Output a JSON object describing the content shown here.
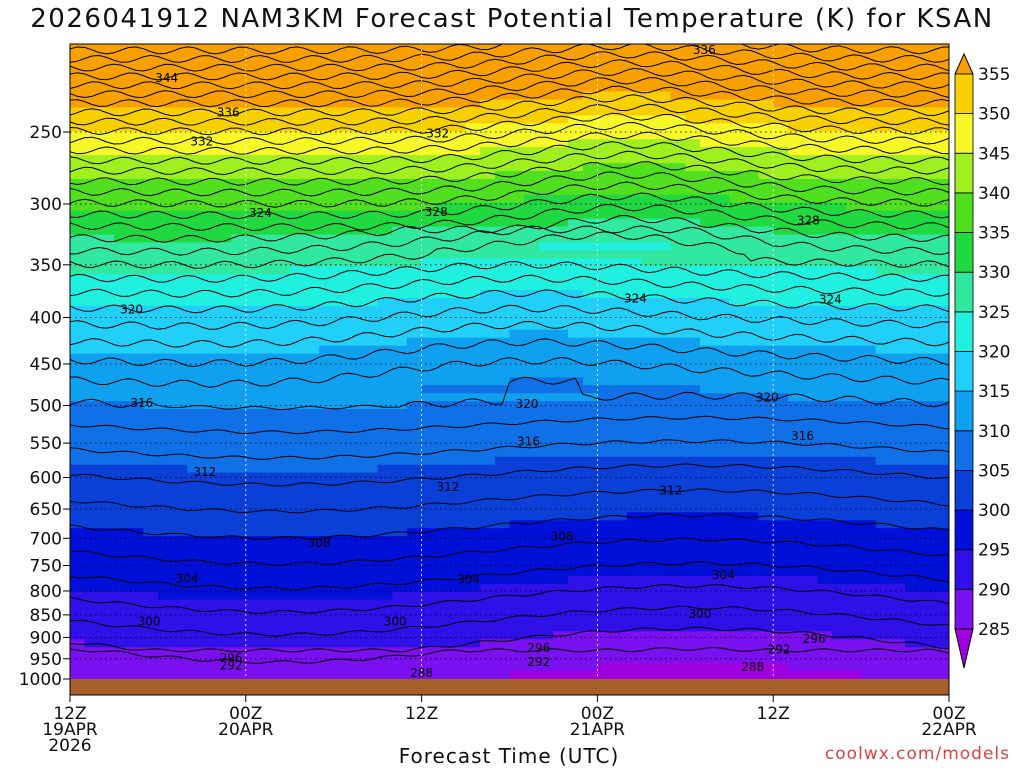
{
  "chart_data": {
    "type": "heatmap",
    "title": "2026041912 NAM3KM Forecast Potential Temperature (K) for KSAN",
    "xlabel": "Forecast Time (UTC)",
    "ylabel": "",
    "x_ticks": [
      {
        "t": 0,
        "lines": [
          "12Z",
          "19APR",
          "2026"
        ]
      },
      {
        "t": 12,
        "lines": [
          "00Z",
          "20APR"
        ]
      },
      {
        "t": 24,
        "lines": [
          "12Z"
        ]
      },
      {
        "t": 36,
        "lines": [
          "00Z",
          "21APR"
        ]
      },
      {
        "t": 48,
        "lines": [
          "12Z"
        ]
      },
      {
        "t": 60,
        "lines": [
          "00Z",
          "22APR"
        ]
      }
    ],
    "x_range_hours": [
      0,
      60
    ],
    "y_axis": "pressure (log scale, inverted)",
    "y_range": [
      1000,
      200
    ],
    "y_ticks": [
      250,
      300,
      350,
      400,
      450,
      500,
      550,
      600,
      650,
      700,
      750,
      800,
      850,
      900,
      950,
      1000
    ],
    "grid": true,
    "colorbar": {
      "levels": [
        285,
        290,
        295,
        300,
        305,
        310,
        315,
        320,
        325,
        330,
        335,
        340,
        345,
        350,
        355
      ],
      "colors": [
        "#a000e0",
        "#7a10f0",
        "#3010e8",
        "#0010d8",
        "#0a40d8",
        "#1070e8",
        "#10a0f0",
        "#20d0f8",
        "#20f0e0",
        "#30e8a0",
        "#20d840",
        "#50e020",
        "#a0f020",
        "#f8f828",
        "#f8d000",
        "#f8a000"
      ]
    },
    "contour_interval": 2,
    "contour_labels": [
      {
        "t": 6.6,
        "p": 218,
        "value": "344"
      },
      {
        "t": 10.8,
        "p": 238,
        "value": "336"
      },
      {
        "t": 9.0,
        "p": 256,
        "value": "332"
      },
      {
        "t": 13.0,
        "p": 307,
        "value": "324"
      },
      {
        "t": 4.2,
        "p": 392,
        "value": "320"
      },
      {
        "t": 4.9,
        "p": 497,
        "value": "316"
      },
      {
        "t": 9.2,
        "p": 592,
        "value": "312"
      },
      {
        "t": 17.0,
        "p": 708,
        "value": "308"
      },
      {
        "t": 8.0,
        "p": 775,
        "value": "304"
      },
      {
        "t": 5.4,
        "p": 864,
        "value": "300"
      },
      {
        "t": 11.0,
        "p": 948,
        "value": "296"
      },
      {
        "t": 11.0,
        "p": 966,
        "value": "292"
      },
      {
        "t": 43.3,
        "p": 203,
        "value": "336"
      },
      {
        "t": 25.1,
        "p": 251,
        "value": "332"
      },
      {
        "t": 25.0,
        "p": 306,
        "value": "328"
      },
      {
        "t": 50.4,
        "p": 313,
        "value": "328"
      },
      {
        "t": 38.6,
        "p": 381,
        "value": "324"
      },
      {
        "t": 51.9,
        "p": 382,
        "value": "324"
      },
      {
        "t": 31.2,
        "p": 498,
        "value": "320"
      },
      {
        "t": 47.6,
        "p": 490,
        "value": "320"
      },
      {
        "t": 31.3,
        "p": 548,
        "value": "316"
      },
      {
        "t": 50.0,
        "p": 540,
        "value": "316"
      },
      {
        "t": 25.8,
        "p": 615,
        "value": "312"
      },
      {
        "t": 41.0,
        "p": 620,
        "value": "312"
      },
      {
        "t": 33.6,
        "p": 697,
        "value": "308"
      },
      {
        "t": 27.2,
        "p": 777,
        "value": "304"
      },
      {
        "t": 44.6,
        "p": 768,
        "value": "304"
      },
      {
        "t": 22.2,
        "p": 864,
        "value": "300"
      },
      {
        "t": 43.0,
        "p": 848,
        "value": "300"
      },
      {
        "t": 32.0,
        "p": 925,
        "value": "296"
      },
      {
        "t": 50.8,
        "p": 904,
        "value": "296"
      },
      {
        "t": 32.0,
        "p": 958,
        "value": "292"
      },
      {
        "t": 48.4,
        "p": 928,
        "value": "292"
      },
      {
        "t": 24.0,
        "p": 985,
        "value": "288"
      },
      {
        "t": 46.6,
        "p": 970,
        "value": "288"
      }
    ]
  },
  "credit": "coolwx.com/models"
}
